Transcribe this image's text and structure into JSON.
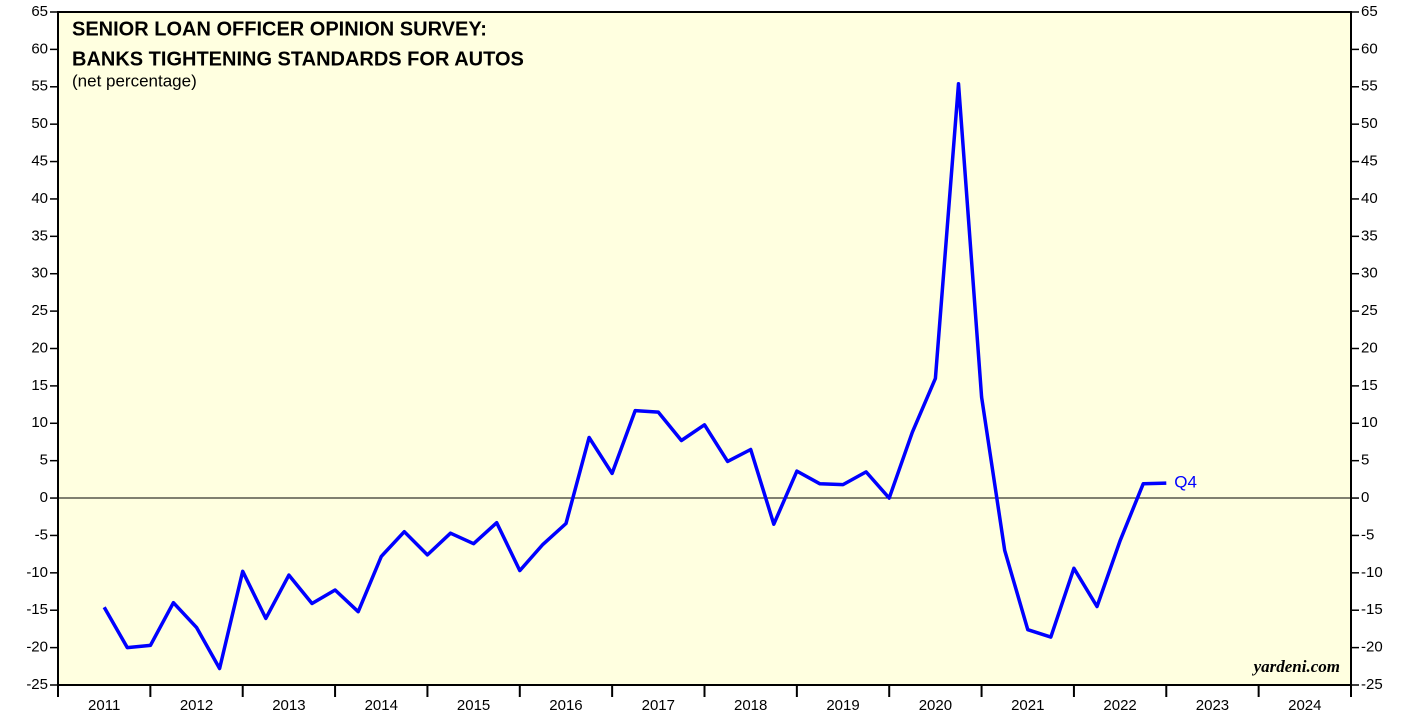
{
  "chart_data": {
    "type": "line",
    "title_lines": [
      "SENIOR LOAN OFFICER OPINION SURVEY:",
      "BANKS TIGHTENING STANDARDS FOR AUTOS"
    ],
    "subtitle": "(net percentage)",
    "x": [
      2011.5,
      2011.75,
      2012.0,
      2012.25,
      2012.5,
      2012.75,
      2013.0,
      2013.25,
      2013.5,
      2013.75,
      2014.0,
      2014.25,
      2014.5,
      2014.75,
      2015.0,
      2015.25,
      2015.5,
      2015.75,
      2016.0,
      2016.25,
      2016.5,
      2016.75,
      2017.0,
      2017.25,
      2017.5,
      2017.75,
      2018.0,
      2018.25,
      2018.5,
      2018.75,
      2019.0,
      2019.25,
      2019.5,
      2019.75,
      2020.0,
      2020.25,
      2020.5,
      2020.75,
      2021.0,
      2021.25,
      2021.5,
      2021.75,
      2022.0,
      2022.25,
      2022.5,
      2022.75,
      2023.0
    ],
    "series": [
      {
        "color": "#0000ff",
        "values": [
          -14.6,
          -20,
          -19.7,
          -14,
          -17.3,
          -22.8,
          -9.8,
          -16.1,
          -10.3,
          -14.1,
          -12.3,
          -15.2,
          -7.8,
          -4.5,
          -7.6,
          -4.7,
          -6.1,
          -3.3,
          -9.7,
          -6.2,
          -3.4,
          8.1,
          3.3,
          11.7,
          11.5,
          7.7,
          9.8,
          4.9,
          6.5,
          -3.5,
          3.6,
          1.9,
          1.8,
          3.5,
          0,
          8.8,
          16,
          55.4,
          13.5,
          -7,
          -17.6,
          -18.6,
          -9.4,
          -14.5,
          -5.7,
          1.9,
          2
        ]
      }
    ],
    "xlim": [
      2011,
      2025
    ],
    "xticks": [
      {
        "value": 2011.5,
        "label": "2011"
      },
      {
        "value": 2012.5,
        "label": "2012"
      },
      {
        "value": 2013.5,
        "label": "2013"
      },
      {
        "value": 2014.5,
        "label": "2014"
      },
      {
        "value": 2015.5,
        "label": "2015"
      },
      {
        "value": 2016.5,
        "label": "2016"
      },
      {
        "value": 2017.5,
        "label": "2017"
      },
      {
        "value": 2018.5,
        "label": "2018"
      },
      {
        "value": 2019.5,
        "label": "2019"
      },
      {
        "value": 2020.5,
        "label": "2020"
      },
      {
        "value": 2021.5,
        "label": "2021"
      },
      {
        "value": 2022.5,
        "label": "2022"
      },
      {
        "value": 2023.5,
        "label": "2023"
      },
      {
        "value": 2024.5,
        "label": "2024"
      }
    ],
    "xminorticks": [
      2011,
      2012,
      2013,
      2014,
      2015,
      2016,
      2017,
      2018,
      2019,
      2020,
      2021,
      2022,
      2023,
      2024,
      2025
    ],
    "ylim": [
      -25,
      65
    ],
    "yticks": [
      -25,
      -20,
      -15,
      -10,
      -5,
      0,
      5,
      10,
      15,
      20,
      25,
      30,
      35,
      40,
      45,
      50,
      55,
      60,
      65
    ],
    "y2lim": [
      -25,
      65
    ],
    "y2ticks": [
      -25,
      -20,
      -15,
      -10,
      -5,
      0,
      5,
      10,
      15,
      20,
      25,
      30,
      35,
      40,
      45,
      50,
      55,
      60,
      65
    ],
    "zero_line": 0,
    "end_label": "Q4",
    "source": "yardeni.com"
  }
}
